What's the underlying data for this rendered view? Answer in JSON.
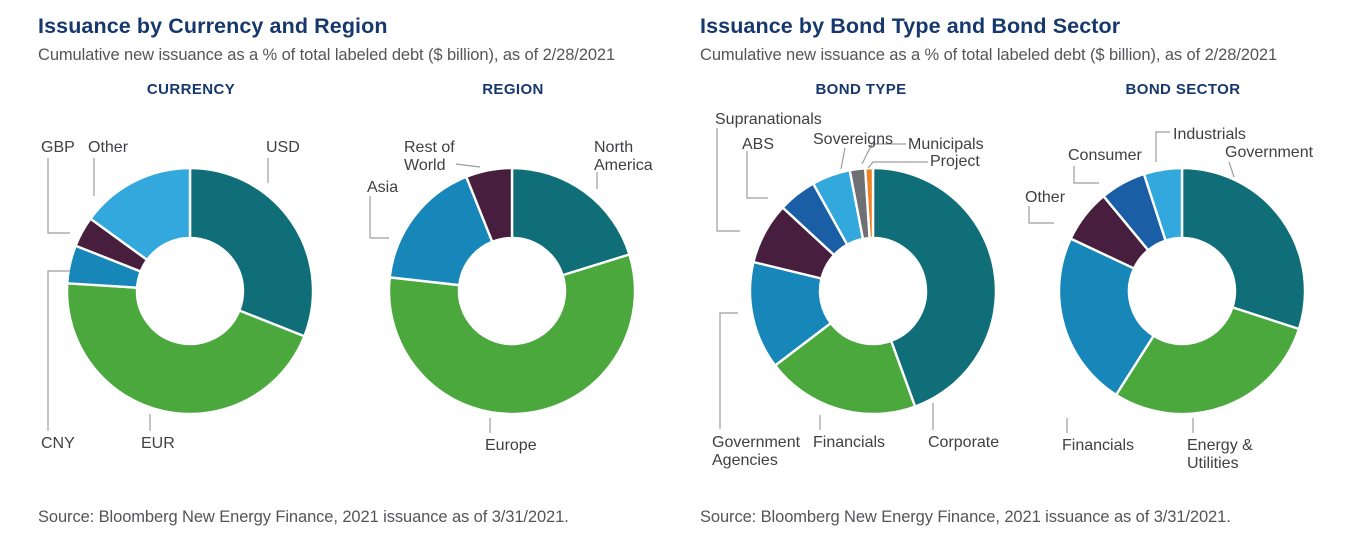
{
  "palette": {
    "teal": "#106E78",
    "green": "#4AA83D",
    "blue": "#1787B9",
    "light_blue": "#33A8DC",
    "maroon": "#471E3E",
    "royal_blue": "#1A5FA5",
    "gray": "#6F7073",
    "orange": "#EF8122",
    "title_navy": "#17386C",
    "subtitle_gray": "#54555A",
    "label_gray": "#3F4044",
    "leader_line": "#9C9DA1"
  },
  "left_panel": {
    "title": "Issuance by Currency and Region",
    "subtitle": "Cumulative new issuance as a % of total labeled debt ($ billion), as of 2/28/2021",
    "source": "Source: Bloomberg New Energy Finance, 2021 issuance as of 3/31/2021."
  },
  "right_panel": {
    "title": "Issuance by Bond Type and Bond Sector",
    "subtitle": "Cumulative new issuance as a % of total labeled debt ($ billion), as of 2/28/2021",
    "source": "Source: Bloomberg New Energy Finance, 2021 issuance as of 3/31/2021."
  },
  "chart_data": [
    {
      "id": "currency",
      "type": "pie",
      "style": "donut",
      "title": "CURRENCY",
      "legend_position": "outside-labels",
      "slices": [
        {
          "label": "USD",
          "value": 31,
          "pct_label": "31%",
          "color": "#106E78"
        },
        {
          "label": "EUR",
          "value": 45,
          "pct_label": "45%",
          "color": "#4AA83D"
        },
        {
          "label": "CNY",
          "value": 5,
          "pct_label": "5%",
          "color": "#1787B9"
        },
        {
          "label": "GBP",
          "value": 4,
          "pct_label": "4%",
          "color": "#471E3E"
        },
        {
          "label": "Other",
          "value": 15,
          "pct_label": "15%",
          "color": "#33A8DC"
        }
      ]
    },
    {
      "id": "region",
      "type": "pie",
      "style": "donut",
      "title": "REGION",
      "legend_position": "outside-labels",
      "slices": [
        {
          "label": "North America",
          "display_label": "North\nAmerica",
          "value": 20,
          "pct_label": "20%",
          "color": "#106E78"
        },
        {
          "label": "Europe",
          "value": 56,
          "pct_label": "56%",
          "color": "#4AA83D"
        },
        {
          "label": "Asia",
          "value": 17,
          "pct_label": "17%",
          "color": "#1787B9"
        },
        {
          "label": "Rest of World",
          "display_label": "Rest of\nWorld",
          "value": 6,
          "pct_label": "6%",
          "color": "#471E3E"
        }
      ]
    },
    {
      "id": "bond_type",
      "type": "pie",
      "style": "donut",
      "title": "BOND TYPE",
      "legend_position": "outside-labels",
      "slices": [
        {
          "label": "Corporate",
          "value": 44,
          "pct_label": "44%",
          "color": "#106E78"
        },
        {
          "label": "Financials",
          "value": 20,
          "pct_label": "20%",
          "color": "#4AA83D"
        },
        {
          "label": "Government Agencies",
          "display_label": "Government\nAgencies",
          "value": 14,
          "pct_label": "14%",
          "color": "#1787B9"
        },
        {
          "label": "Supranationals",
          "value": 8,
          "pct_label": "8%",
          "color": "#471E3E"
        },
        {
          "label": "ABS",
          "value": 5,
          "pct_label": "5%",
          "color": "#1A5FA5"
        },
        {
          "label": "Sovereigns",
          "value": 5,
          "pct_label": "5%",
          "color": "#33A8DC"
        },
        {
          "label": "Municipals",
          "value": 2,
          "pct_label": "",
          "color": "#6F7073"
        },
        {
          "label": "Project",
          "value": 1,
          "pct_label": "",
          "color": "#EF8122"
        }
      ]
    },
    {
      "id": "bond_sector",
      "type": "pie",
      "style": "donut",
      "title": "BOND SECTOR",
      "legend_position": "outside-labels",
      "slices": [
        {
          "label": "Government",
          "value": 30,
          "pct_label": "30%",
          "color": "#106E78"
        },
        {
          "label": "Energy & Utilities",
          "display_label": "Energy &\nUtilities",
          "value": 29,
          "pct_label": "29%",
          "color": "#4AA83D"
        },
        {
          "label": "Financials",
          "value": 23,
          "pct_label": "23%",
          "color": "#1787B9"
        },
        {
          "label": "Other",
          "value": 7,
          "pct_label": "7%",
          "color": "#471E3E"
        },
        {
          "label": "Consumer",
          "value": 6,
          "pct_label": "6%",
          "color": "#1A5FA5"
        },
        {
          "label": "Industrials",
          "value": 5,
          "pct_label": "5%",
          "color": "#33A8DC"
        }
      ]
    }
  ]
}
